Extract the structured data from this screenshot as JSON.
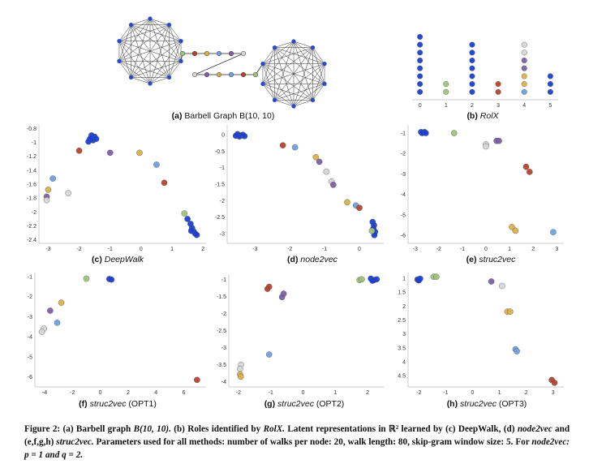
{
  "colors": {
    "blue": "#1a3fd6",
    "green": "#9cc47a",
    "red": "#b5432e",
    "orange": "#d9b14a",
    "purple": "#7d5fa8",
    "lightblue": "#6fa0e0",
    "gray": "#d6d6d6",
    "edge": "#333333",
    "node": "#2b49cf"
  },
  "barbell": {
    "caption_letter": "(a)",
    "caption_text": "Barbell Graph B(10, 10)",
    "path_colors_top": [
      "green",
      "red",
      "orange",
      "lightblue",
      "purple",
      "gray"
    ],
    "path_colors_bottom": [
      "gray",
      "purple",
      "orange",
      "lightblue",
      "red",
      "green"
    ]
  },
  "panels": [
    {
      "id": "b",
      "letter": "(b)",
      "title": "RolX",
      "title_style": "italic",
      "chart_data": {
        "type": "scatter",
        "xlim": [
          -0.3,
          5.3
        ],
        "ylim": [
          0,
          10
        ],
        "xticks": [
          "0",
          "1",
          "2",
          "3",
          "4",
          "5"
        ],
        "xtick_values": [
          0,
          1,
          2,
          3,
          4,
          5
        ],
        "yticks": [],
        "ytick_values": [],
        "points": [
          {
            "x": 0,
            "y": 1,
            "c": "blue"
          },
          {
            "x": 0,
            "y": 2,
            "c": "blue"
          },
          {
            "x": 0,
            "y": 3,
            "c": "blue"
          },
          {
            "x": 0,
            "y": 4,
            "c": "blue"
          },
          {
            "x": 0,
            "y": 5,
            "c": "blue"
          },
          {
            "x": 0,
            "y": 6,
            "c": "blue"
          },
          {
            "x": 0,
            "y": 7,
            "c": "blue"
          },
          {
            "x": 0,
            "y": 8,
            "c": "blue"
          },
          {
            "x": 1,
            "y": 1,
            "c": "green"
          },
          {
            "x": 1,
            "y": 2,
            "c": "green"
          },
          {
            "x": 2,
            "y": 1,
            "c": "blue"
          },
          {
            "x": 2,
            "y": 2,
            "c": "blue"
          },
          {
            "x": 2,
            "y": 3,
            "c": "blue"
          },
          {
            "x": 2,
            "y": 4,
            "c": "blue"
          },
          {
            "x": 2,
            "y": 5,
            "c": "blue"
          },
          {
            "x": 2,
            "y": 6,
            "c": "blue"
          },
          {
            "x": 2,
            "y": 7,
            "c": "blue"
          },
          {
            "x": 3,
            "y": 1,
            "c": "red"
          },
          {
            "x": 3,
            "y": 2,
            "c": "red"
          },
          {
            "x": 4,
            "y": 1,
            "c": "lightblue"
          },
          {
            "x": 4,
            "y": 2,
            "c": "orange"
          },
          {
            "x": 4,
            "y": 3,
            "c": "orange"
          },
          {
            "x": 4,
            "y": 4,
            "c": "purple"
          },
          {
            "x": 4,
            "y": 5,
            "c": "purple"
          },
          {
            "x": 4,
            "y": 6,
            "c": "gray"
          },
          {
            "x": 4,
            "y": 7,
            "c": "gray"
          },
          {
            "x": 5,
            "y": 1,
            "c": "blue"
          },
          {
            "x": 5,
            "y": 2,
            "c": "blue"
          },
          {
            "x": 5,
            "y": 3,
            "c": "blue"
          }
        ]
      }
    },
    {
      "id": "c",
      "letter": "(c)",
      "title": "DeepWalk",
      "title_style": "italic",
      "chart_data": {
        "type": "scatter",
        "xlim": [
          -3.3,
          2.1
        ],
        "ylim": [
          -2.45,
          -0.75
        ],
        "xticks": [
          "-3",
          "-2",
          "-1",
          "0",
          "1",
          "2"
        ],
        "xtick_values": [
          -3,
          -2,
          -1,
          0,
          1,
          2
        ],
        "yticks": [
          "-0.8",
          "-1",
          "-1.2",
          "-1.4",
          "-1.6",
          "-1.8",
          "-2",
          "-2.2",
          "-2.4"
        ],
        "ytick_values": [
          -0.8,
          -1,
          -1.2,
          -1.4,
          -1.6,
          -1.8,
          -2,
          -2.2,
          -2.4
        ],
        "points": [
          {
            "x": -1.6,
            "y": -0.9,
            "c": "blue"
          },
          {
            "x": -1.5,
            "y": -0.92,
            "c": "blue"
          },
          {
            "x": -1.65,
            "y": -0.95,
            "c": "blue"
          },
          {
            "x": -1.55,
            "y": -0.97,
            "c": "blue"
          },
          {
            "x": -1.7,
            "y": -0.99,
            "c": "blue"
          },
          {
            "x": -1.6,
            "y": -0.94,
            "c": "blue"
          },
          {
            "x": -1.45,
            "y": -0.95,
            "c": "blue"
          },
          {
            "x": -2.0,
            "y": -1.12,
            "c": "red"
          },
          {
            "x": -1.0,
            "y": -1.15,
            "c": "purple"
          },
          {
            "x": -0.05,
            "y": -1.15,
            "c": "orange"
          },
          {
            "x": 0.5,
            "y": -1.32,
            "c": "lightblue"
          },
          {
            "x": 0.75,
            "y": -1.58,
            "c": "red"
          },
          {
            "x": -2.85,
            "y": -1.52,
            "c": "lightblue"
          },
          {
            "x": -3.0,
            "y": -1.68,
            "c": "orange"
          },
          {
            "x": -3.05,
            "y": -1.78,
            "c": "purple"
          },
          {
            "x": -3.05,
            "y": -1.83,
            "c": "gray"
          },
          {
            "x": -2.35,
            "y": -1.73,
            "c": "gray"
          },
          {
            "x": 1.4,
            "y": -2.02,
            "c": "green"
          },
          {
            "x": 1.5,
            "y": -2.1,
            "c": "blue"
          },
          {
            "x": 1.6,
            "y": -2.17,
            "c": "blue"
          },
          {
            "x": 1.65,
            "y": -2.23,
            "c": "blue"
          },
          {
            "x": 1.7,
            "y": -2.28,
            "c": "blue"
          },
          {
            "x": 1.75,
            "y": -2.31,
            "c": "blue"
          },
          {
            "x": 1.62,
            "y": -2.27,
            "c": "blue"
          },
          {
            "x": 1.8,
            "y": -2.33,
            "c": "blue"
          }
        ]
      }
    },
    {
      "id": "d",
      "letter": "(d)",
      "title": "node2vec",
      "title_style": "italic",
      "chart_data": {
        "type": "scatter",
        "xlim": [
          -3.8,
          0.7
        ],
        "ylim": [
          -3.3,
          0.3
        ],
        "xticks": [
          "-3",
          "-2",
          "-1",
          "0"
        ],
        "xtick_values": [
          -3,
          -2,
          -1,
          0
        ],
        "yticks": [
          "0",
          "-0.5",
          "-1",
          "-1.5",
          "-2",
          "-2.5",
          "-3"
        ],
        "ytick_values": [
          0,
          -0.5,
          -1,
          -1.5,
          -2,
          -2.5,
          -3
        ],
        "points": [
          {
            "x": -3.5,
            "y": 0.02,
            "c": "blue"
          },
          {
            "x": -3.4,
            "y": -0.02,
            "c": "blue"
          },
          {
            "x": -3.45,
            "y": -0.05,
            "c": "blue"
          },
          {
            "x": -3.35,
            "y": 0.0,
            "c": "blue"
          },
          {
            "x": -3.3,
            "y": -0.04,
            "c": "blue"
          },
          {
            "x": -3.55,
            "y": -0.03,
            "c": "blue"
          },
          {
            "x": -2.2,
            "y": -0.32,
            "c": "red"
          },
          {
            "x": -1.85,
            "y": -0.38,
            "c": "lightblue"
          },
          {
            "x": -1.25,
            "y": -0.68,
            "c": "orange"
          },
          {
            "x": -1.15,
            "y": -0.82,
            "c": "purple"
          },
          {
            "x": -0.95,
            "y": -1.12,
            "c": "gray"
          },
          {
            "x": -0.8,
            "y": -1.42,
            "c": "gray"
          },
          {
            "x": -0.75,
            "y": -1.52,
            "c": "purple"
          },
          {
            "x": -0.35,
            "y": -2.05,
            "c": "orange"
          },
          {
            "x": -0.1,
            "y": -2.15,
            "c": "lightblue"
          },
          {
            "x": 0.0,
            "y": -2.22,
            "c": "red"
          },
          {
            "x": 0.38,
            "y": -2.65,
            "c": "blue"
          },
          {
            "x": 0.42,
            "y": -2.75,
            "c": "blue"
          },
          {
            "x": 0.4,
            "y": -2.85,
            "c": "blue"
          },
          {
            "x": 0.45,
            "y": -2.95,
            "c": "blue"
          },
          {
            "x": 0.43,
            "y": -3.05,
            "c": "blue"
          },
          {
            "x": 0.36,
            "y": -2.92,
            "c": "green"
          }
        ]
      }
    },
    {
      "id": "e",
      "letter": "(e)",
      "title": "struc2vec",
      "title_style": "italic",
      "chart_data": {
        "type": "scatter",
        "xlim": [
          -3.3,
          3.3
        ],
        "ylim": [
          -6.4,
          -0.6
        ],
        "xticks": [
          "-3",
          "-2",
          "-1",
          "0",
          "1",
          "2",
          "3"
        ],
        "xtick_values": [
          -3,
          -2,
          -1,
          0,
          1,
          2,
          3
        ],
        "yticks": [
          "-1",
          "-2",
          "-3",
          "-4",
          "-5",
          "-6"
        ],
        "ytick_values": [
          -1,
          -2,
          -3,
          -4,
          -5,
          -6
        ],
        "points": [
          {
            "x": -2.75,
            "y": -0.95,
            "c": "blue"
          },
          {
            "x": -2.6,
            "y": -0.95,
            "c": "blue"
          },
          {
            "x": -2.7,
            "y": -1.0,
            "c": "blue"
          },
          {
            "x": -2.55,
            "y": -1.0,
            "c": "blue"
          },
          {
            "x": -1.35,
            "y": -1.0,
            "c": "green"
          },
          {
            "x": 0.0,
            "y": -1.55,
            "c": "gray"
          },
          {
            "x": 0.0,
            "y": -1.65,
            "c": "gray"
          },
          {
            "x": 0.45,
            "y": -1.38,
            "c": "purple"
          },
          {
            "x": 0.55,
            "y": -1.38,
            "c": "purple"
          },
          {
            "x": 1.7,
            "y": -2.65,
            "c": "red"
          },
          {
            "x": 1.85,
            "y": -2.9,
            "c": "red"
          },
          {
            "x": 1.1,
            "y": -5.6,
            "c": "orange"
          },
          {
            "x": 1.25,
            "y": -5.78,
            "c": "orange"
          },
          {
            "x": 2.85,
            "y": -5.85,
            "c": "lightblue"
          }
        ]
      }
    },
    {
      "id": "f",
      "letter": "(f)",
      "title": "struc2vec",
      "title_suffix": "(OPT1)",
      "title_style": "italic",
      "chart_data": {
        "type": "scatter",
        "xlim": [
          -4.7,
          7.6
        ],
        "ylim": [
          -6.5,
          -0.8
        ],
        "xticks": [
          "-4",
          "-2",
          "0",
          "2",
          "4",
          "6"
        ],
        "xtick_values": [
          -4,
          -2,
          0,
          2,
          4,
          6
        ],
        "yticks": [
          "-1",
          "-2",
          "-3",
          "-4",
          "-5",
          "-6"
        ],
        "ytick_values": [
          -1,
          -2,
          -3,
          -4,
          -5,
          -6
        ],
        "points": [
          {
            "x": -1.0,
            "y": -1.1,
            "c": "green"
          },
          {
            "x": 0.65,
            "y": -1.12,
            "c": "blue"
          },
          {
            "x": 0.8,
            "y": -1.15,
            "c": "blue"
          },
          {
            "x": -2.8,
            "y": -2.3,
            "c": "orange"
          },
          {
            "x": -3.6,
            "y": -2.7,
            "c": "purple"
          },
          {
            "x": -3.1,
            "y": -3.3,
            "c": "lightblue"
          },
          {
            "x": -4.05,
            "y": -3.6,
            "c": "gray"
          },
          {
            "x": -4.2,
            "y": -3.75,
            "c": "gray"
          },
          {
            "x": 6.95,
            "y": -6.15,
            "c": "red"
          }
        ]
      }
    },
    {
      "id": "g",
      "letter": "(g)",
      "title": "struc2vec",
      "title_suffix": "(OPT2)",
      "title_style": "italic",
      "chart_data": {
        "type": "scatter",
        "xlim": [
          -2.3,
          2.5
        ],
        "ylim": [
          -4.15,
          -0.85
        ],
        "xticks": [
          "-2",
          "-1",
          "0",
          "1",
          "2"
        ],
        "xtick_values": [
          -2,
          -1,
          0,
          1,
          2
        ],
        "yticks": [
          "-1",
          "-1.5",
          "-2",
          "-2.5",
          "-3",
          "-3.5",
          "-4"
        ],
        "ytick_values": [
          -1,
          -1.5,
          -2,
          -2.5,
          -3,
          -3.5,
          -4
        ],
        "points": [
          {
            "x": 1.75,
            "y": -1.02,
            "c": "green"
          },
          {
            "x": 1.82,
            "y": -1.0,
            "c": "green"
          },
          {
            "x": 2.1,
            "y": -0.98,
            "c": "blue"
          },
          {
            "x": 2.2,
            "y": -1.02,
            "c": "blue"
          },
          {
            "x": 2.28,
            "y": -1.0,
            "c": "blue"
          },
          {
            "x": 2.15,
            "y": -1.04,
            "c": "blue"
          },
          {
            "x": -1.1,
            "y": -1.28,
            "c": "red"
          },
          {
            "x": -1.05,
            "y": -1.22,
            "c": "red"
          },
          {
            "x": -0.65,
            "y": -1.52,
            "c": "purple"
          },
          {
            "x": -0.6,
            "y": -1.42,
            "c": "purple"
          },
          {
            "x": -1.05,
            "y": -3.2,
            "c": "lightblue"
          },
          {
            "x": -1.92,
            "y": -3.5,
            "c": "gray"
          },
          {
            "x": -1.95,
            "y": -3.62,
            "c": "gray"
          },
          {
            "x": -1.95,
            "y": -3.78,
            "c": "orange"
          },
          {
            "x": -1.93,
            "y": -3.85,
            "c": "orange"
          }
        ]
      }
    },
    {
      "id": "h",
      "letter": "(h)",
      "title": "struc2vec",
      "title_suffix": "(OPT3)",
      "title_style": "italic",
      "chart_data": {
        "type": "scatter",
        "xlim": [
          -2.4,
          3.4
        ],
        "ylim": [
          -4.9,
          -0.8
        ],
        "xticks": [
          "-2",
          "-1",
          "0",
          "1",
          "2",
          "3"
        ],
        "xtick_values": [
          -2,
          -1,
          0,
          1,
          2,
          3
        ],
        "yticks": [
          "1",
          "1.5",
          "2",
          "2.5",
          "3",
          "3.5",
          "4",
          "4.5"
        ],
        "ytick_values": [
          -1,
          -1.5,
          -2,
          -2.5,
          -3,
          -3.5,
          -4,
          -4.5
        ],
        "points": [
          {
            "x": -2.05,
            "y": -1.05,
            "c": "blue"
          },
          {
            "x": -1.95,
            "y": -1.02,
            "c": "blue"
          },
          {
            "x": -2.0,
            "y": -1.08,
            "c": "blue"
          },
          {
            "x": -1.45,
            "y": -0.95,
            "c": "green"
          },
          {
            "x": -1.35,
            "y": -0.95,
            "c": "green"
          },
          {
            "x": 0.7,
            "y": -1.12,
            "c": "purple"
          },
          {
            "x": 1.1,
            "y": -1.28,
            "c": "gray"
          },
          {
            "x": 1.3,
            "y": -2.2,
            "c": "orange"
          },
          {
            "x": 1.4,
            "y": -2.2,
            "c": "orange"
          },
          {
            "x": 1.6,
            "y": -3.55,
            "c": "lightblue"
          },
          {
            "x": 1.65,
            "y": -3.62,
            "c": "lightblue"
          },
          {
            "x": 2.95,
            "y": -4.65,
            "c": "red"
          },
          {
            "x": 3.05,
            "y": -4.75,
            "c": "red"
          }
        ]
      }
    }
  ],
  "figure_caption": {
    "label": "Figure 2:",
    "part1": "(a) Barbell graph",
    "graph_math": "B(10, 10).",
    "part2": "(b) Roles identified by",
    "rolx": "RolX.",
    "part3": "Latent representations in ℝ² learned by (c) DeepWalk,",
    "part4": "(d)",
    "node2vec": "node2vec",
    "part5": "and (e,f,g,h)",
    "struc2vec": "struc2vec.",
    "part6": "Parameters used for all methods: number of walks per node: 20, walk length: 80, skip-gram window size: 5. For",
    "node2vec2": "node2vec:",
    "pq": "p = 1 and q = 2."
  }
}
